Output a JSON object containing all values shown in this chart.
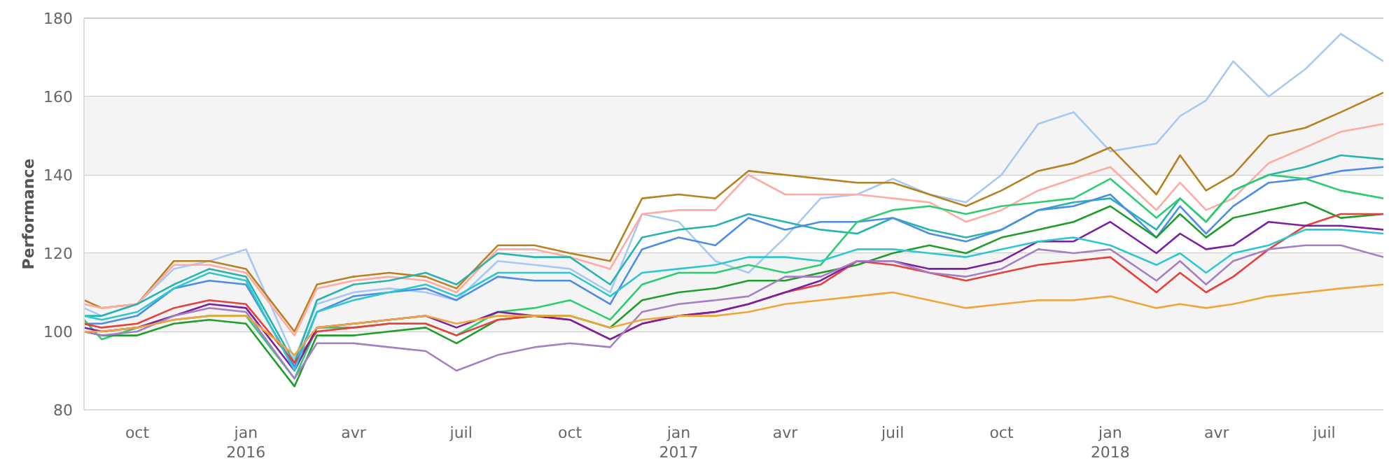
{
  "chart_data": {
    "type": "line",
    "ylabel": "Performance",
    "x": [
      "2015-08-17",
      "2015-09-01",
      "2015-10-01",
      "2015-11-01",
      "2015-12-01",
      "2016-01-01",
      "2016-02-11",
      "2016-03-01",
      "2016-04-01",
      "2016-05-01",
      "2016-06-01",
      "2016-06-27",
      "2016-08-01",
      "2016-09-01",
      "2016-10-01",
      "2016-11-04",
      "2016-12-01",
      "2017-01-01",
      "2017-02-01",
      "2017-03-01",
      "2017-04-01",
      "2017-05-01",
      "2017-06-01",
      "2017-07-01",
      "2017-08-01",
      "2017-09-01",
      "2017-10-01",
      "2017-11-01",
      "2017-12-01",
      "2018-01-01",
      "2018-02-09",
      "2018-03-01",
      "2018-03-23",
      "2018-04-15",
      "2018-05-15",
      "2018-06-15",
      "2018-07-15",
      "2018-08-20"
    ],
    "series": [
      {
        "color": "#a6c8f4",
        "values": [
          106,
          104,
          107,
          116,
          118,
          121,
          93,
          107,
          110,
          111,
          110,
          108,
          118,
          117,
          116,
          110,
          130,
          128,
          118,
          115,
          124,
          134,
          135,
          139,
          135,
          133,
          140,
          153,
          156,
          146,
          148,
          155,
          159,
          169,
          160,
          167,
          176,
          169
        ]
      },
      {
        "color": "#b8801e",
        "values": [
          108,
          106,
          107,
          118,
          118,
          116,
          100,
          112,
          114,
          115,
          114,
          111,
          122,
          122,
          120,
          118,
          134,
          135,
          134,
          141,
          140,
          139,
          138,
          138,
          135,
          132,
          136,
          141,
          143,
          147,
          135,
          145,
          136,
          140,
          150,
          152,
          156,
          161
        ]
      },
      {
        "color": "#ffaaa2",
        "values": [
          107,
          106,
          107,
          117,
          117,
          115,
          99,
          111,
          113,
          114,
          113,
          110,
          121,
          121,
          119,
          116,
          130,
          131,
          131,
          140,
          135,
          135,
          135,
          134,
          133,
          128,
          131,
          136,
          139,
          142,
          131,
          138,
          131,
          134,
          143,
          147,
          151,
          153
        ]
      },
      {
        "color": "#26b5ae",
        "values": [
          104,
          104,
          107,
          112,
          116,
          114,
          92,
          108,
          112,
          113,
          115,
          112,
          120,
          119,
          119,
          112,
          124,
          126,
          127,
          130,
          128,
          126,
          125,
          129,
          126,
          124,
          126,
          131,
          133,
          134,
          126,
          134,
          128,
          136,
          140,
          142,
          145,
          144
        ]
      },
      {
        "color": "#4c8de6",
        "values": [
          102,
          102,
          104,
          111,
          113,
          112,
          91,
          105,
          109,
          110,
          111,
          108,
          114,
          113,
          113,
          107,
          121,
          124,
          122,
          129,
          126,
          128,
          128,
          129,
          125,
          123,
          126,
          131,
          132,
          135,
          124,
          132,
          125,
          132,
          138,
          139,
          141,
          142
        ]
      },
      {
        "color": "#2ecc71",
        "values": [
          103,
          98,
          101,
          103,
          104,
          104,
          88,
          101,
          101,
          102,
          102,
          99,
          105,
          106,
          108,
          103,
          112,
          115,
          115,
          117,
          115,
          117,
          128,
          131,
          132,
          130,
          132,
          133,
          134,
          139,
          129,
          134,
          128,
          136,
          140,
          139,
          136,
          134
        ]
      },
      {
        "color": "#1e9e28",
        "values": [
          100,
          99,
          99,
          102,
          103,
          102,
          86,
          99,
          99,
          100,
          101,
          97,
          103,
          104,
          104,
          101,
          108,
          110,
          111,
          113,
          113,
          115,
          117,
          120,
          122,
          120,
          124,
          126,
          128,
          132,
          124,
          130,
          124,
          129,
          131,
          133,
          129,
          130
        ]
      },
      {
        "color": "#e8403a",
        "values": [
          102,
          101,
          102,
          106,
          108,
          107,
          92,
          100,
          101,
          102,
          102,
          99,
          103,
          104,
          103,
          98,
          102,
          104,
          105,
          107,
          110,
          112,
          118,
          117,
          115,
          113,
          115,
          117,
          118,
          119,
          110,
          115,
          110,
          114,
          121,
          127,
          130,
          130
        ]
      },
      {
        "color": "#7b1fa2",
        "values": [
          101,
          100,
          101,
          104,
          107,
          106,
          90,
          101,
          102,
          103,
          104,
          101,
          105,
          104,
          103,
          98,
          102,
          104,
          105,
          107,
          110,
          113,
          118,
          118,
          116,
          116,
          118,
          123,
          123,
          128,
          120,
          125,
          121,
          122,
          128,
          127,
          127,
          126
        ]
      },
      {
        "color": "#2cc8d0",
        "values": [
          104,
          103,
          105,
          111,
          115,
          113,
          90,
          105,
          108,
          110,
          112,
          109,
          115,
          115,
          115,
          109,
          115,
          116,
          117,
          119,
          119,
          118,
          121,
          121,
          120,
          119,
          121,
          123,
          124,
          122,
          117,
          120,
          115,
          120,
          122,
          126,
          126,
          125
        ]
      },
      {
        "color": "#a57fc4",
        "values": [
          100,
          99,
          100,
          104,
          106,
          105,
          88,
          97,
          97,
          96,
          95,
          90,
          94,
          96,
          97,
          96,
          105,
          107,
          108,
          109,
          114,
          114,
          118,
          118,
          115,
          114,
          116,
          121,
          120,
          121,
          113,
          118,
          112,
          118,
          121,
          122,
          122,
          119
        ]
      },
      {
        "color": "#f0a43a",
        "values": [
          100,
          100,
          101,
          103,
          104,
          104,
          94,
          101,
          102,
          103,
          104,
          102,
          104,
          104,
          104,
          101,
          103,
          104,
          104,
          105,
          107,
          108,
          109,
          110,
          108,
          106,
          107,
          108,
          108,
          109,
          106,
          107,
          106,
          107,
          109,
          110,
          111,
          112
        ]
      }
    ],
    "xlim": [
      "2015-08-17",
      "2018-08-20"
    ],
    "xticks": [
      {
        "value": "2015-10-01",
        "label": "oct"
      },
      {
        "value": "2016-01-01",
        "label": "jan\n2016"
      },
      {
        "value": "2016-04-01",
        "label": "avr"
      },
      {
        "value": "2016-07-01",
        "label": "juil"
      },
      {
        "value": "2016-10-01",
        "label": "oct"
      },
      {
        "value": "2017-01-01",
        "label": "jan\n2017"
      },
      {
        "value": "2017-04-01",
        "label": "avr"
      },
      {
        "value": "2017-07-01",
        "label": "juil"
      },
      {
        "value": "2017-10-01",
        "label": "oct"
      },
      {
        "value": "2018-01-01",
        "label": "jan\n2018"
      },
      {
        "value": "2018-04-01",
        "label": "avr"
      },
      {
        "value": "2018-07-01",
        "label": "juil"
      }
    ],
    "ylim": [
      80,
      180
    ],
    "yticks": [
      80,
      100,
      120,
      140,
      160,
      180
    ],
    "bands": [
      {
        "axis": "y",
        "from": 100,
        "to": 120,
        "color": "#f4f4f4"
      },
      {
        "axis": "y",
        "from": 140,
        "to": 160,
        "color": "#f4f4f4"
      }
    ],
    "grid": "y",
    "marker": "none",
    "line_style": "solid"
  }
}
